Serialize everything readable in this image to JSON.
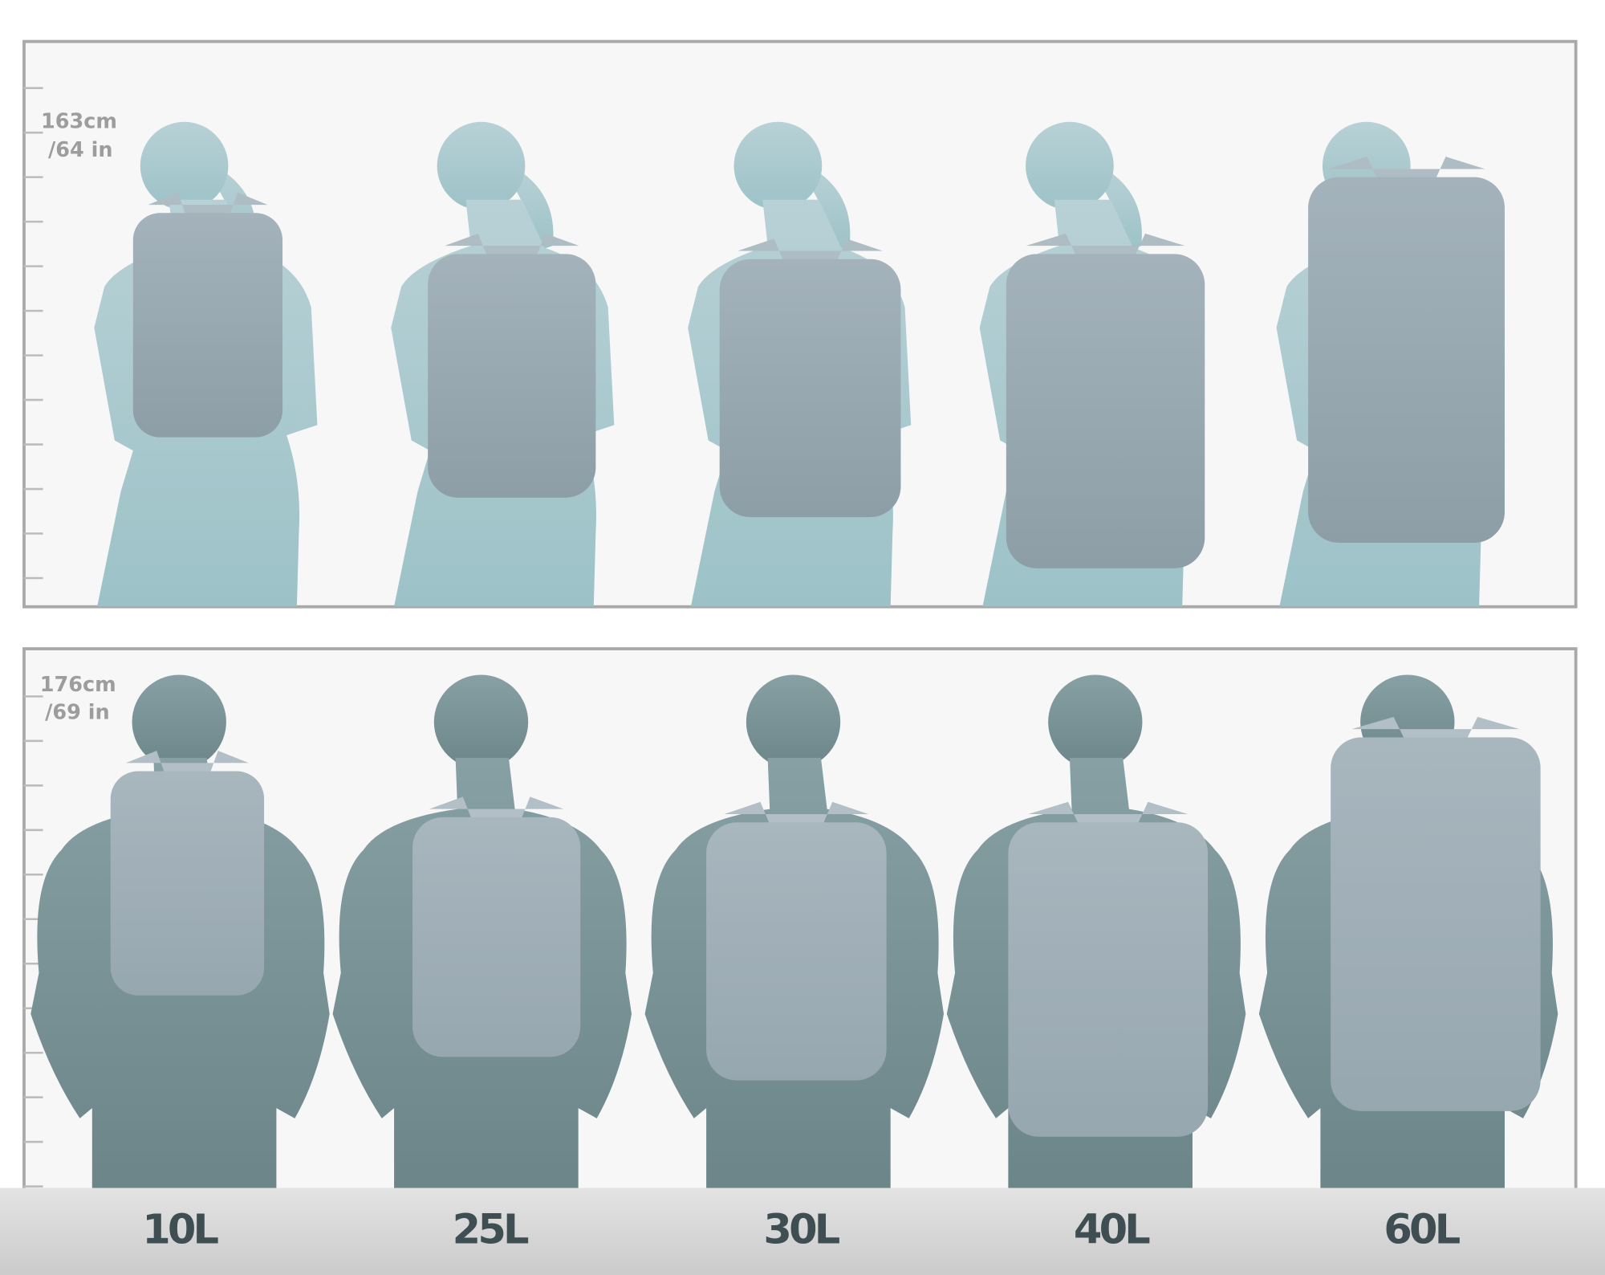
{
  "rows": [
    {
      "figure": "woman",
      "height_line1": "163cm",
      "height_line2": "/64 in"
    },
    {
      "figure": "man",
      "height_line1": "176cm",
      "height_line2": "/69 in"
    }
  ],
  "volumes": [
    {
      "label": "10L",
      "liters": 10
    },
    {
      "label": "25L",
      "liters": 25
    },
    {
      "label": "30L",
      "liters": 30
    },
    {
      "label": "40L",
      "liters": 40
    },
    {
      "label": "60L",
      "liters": 60
    }
  ],
  "colors": {
    "panel_bg": "#f7f7f7",
    "panel_border": "#a9a9a9",
    "woman": "#a3c5ca",
    "man": "#758f93",
    "backpack_on_woman": "#96a6ae",
    "backpack_on_man": "#a2b1ba",
    "label_text": "#3f4e52"
  }
}
